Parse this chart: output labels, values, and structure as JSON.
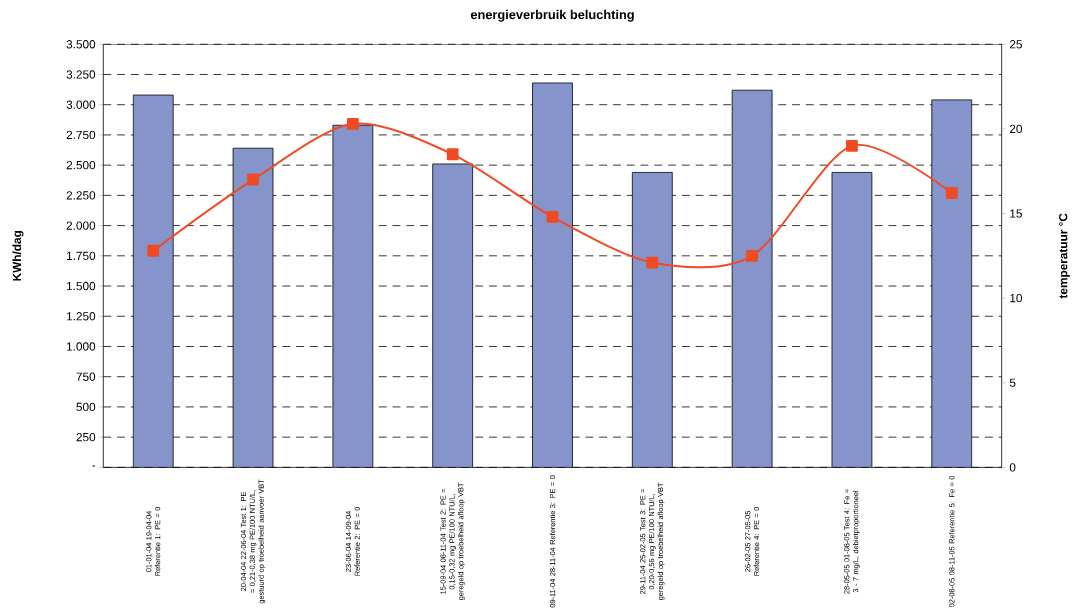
{
  "chart_data": {
    "type": "bar",
    "title": "energieverbruik beluchting",
    "ylabel": "KWh/dag",
    "y2label": "temperatuur °C",
    "categories": [
      "01-01-04 19-04-04 Referentie 1: PE = 0",
      "20-04-04 22-06-04 Test 1: PE = 0,21-0,38 mg PE/100 NTU/L, gestuurd op troebelheid aanvoer VBT",
      "23-06-04 14-09-04 Referentie 2: PE = 0",
      "15-09-04 08-11-04 Test 2: PE = 0,15-0,32 mg PE/100 NTU/L, geregeld op troebelheid afloop VBT",
      "09-11-04 28-11-04 Referentie 3: PE = 0",
      "29-11-04 25-02-05 Test 3: PE = 0,20-0,56 mg PE/100 NTU/L, geregeld op troebelheid afloop VBT",
      "26-02-05 27-05-05 Referentie 4: PE = 0",
      "28-05-05 01-08-05 Test 4: Fe = 3 - 7 mg/L, debietproportioneel",
      "02-08-05 08-11-05 Referentie 5: Fe = 0"
    ],
    "series": [
      {
        "color": "#8595cb",
        "values": [
          3080,
          2640,
          2830,
          2510,
          3180,
          2440,
          3120,
          2440,
          3040
        ]
      },
      {
        "type": "line",
        "axis": "y2",
        "color": "#f04a24",
        "marker": "square",
        "values": [
          12.8,
          17.0,
          20.3,
          18.5,
          14.8,
          12.1,
          12.5,
          19.0,
          16.2
        ]
      }
    ],
    "ylim": [
      0,
      3500
    ],
    "yticks": [
      {
        "value": 0,
        "label": "-"
      },
      {
        "value": 250,
        "label": "250"
      },
      {
        "value": 500,
        "label": "500"
      },
      {
        "value": 750,
        "label": "750"
      },
      {
        "value": 1000,
        "label": "1.000"
      },
      {
        "value": 1250,
        "label": "1.250"
      },
      {
        "value": 1500,
        "label": "1.500"
      },
      {
        "value": 1750,
        "label": "1.750"
      },
      {
        "value": 2000,
        "label": "2.000"
      },
      {
        "value": 2250,
        "label": "2.250"
      },
      {
        "value": 2500,
        "label": "2.500"
      },
      {
        "value": 2750,
        "label": "2.750"
      },
      {
        "value": 3000,
        "label": "3.000"
      },
      {
        "value": 3250,
        "label": "3.250"
      },
      {
        "value": 3500,
        "label": "3.500"
      }
    ],
    "y2lim": [
      0,
      25
    ],
    "y2ticks": [
      0,
      5,
      10,
      15,
      20,
      25
    ],
    "grid": "y"
  }
}
